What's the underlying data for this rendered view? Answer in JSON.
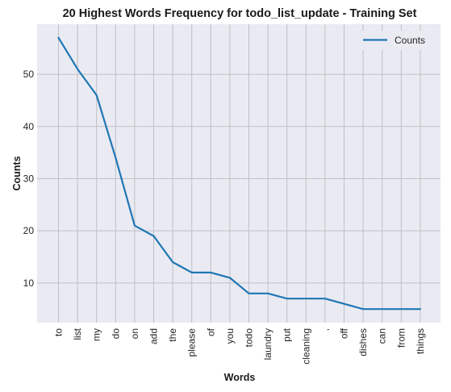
{
  "chart_data": {
    "type": "line",
    "title": "20 Highest Words Frequency for todo_list_update - Training Set",
    "xlabel": "Words",
    "ylabel": "Counts",
    "categories": [
      "to",
      "list",
      "my",
      "do",
      "on",
      "add",
      "the",
      "please",
      "of",
      "you",
      "todo",
      "laundry",
      "put",
      "cleaning",
      ",",
      "off",
      "dishes",
      "can",
      "from",
      "things"
    ],
    "series": [
      {
        "name": "Counts",
        "values": [
          57,
          51,
          46,
          34,
          21,
          19,
          14,
          12,
          12,
          11,
          8,
          8,
          7,
          7,
          7,
          6,
          5,
          5,
          5,
          5
        ],
        "color": "#1f77b4"
      }
    ],
    "yticks": [
      10,
      20,
      30,
      40,
      50
    ],
    "ylim": [
      2.4,
      59.6
    ],
    "grid": true,
    "legend_position": "top-right",
    "background_color": "#eaeaf2",
    "grid_color": "#bfbfc6"
  }
}
